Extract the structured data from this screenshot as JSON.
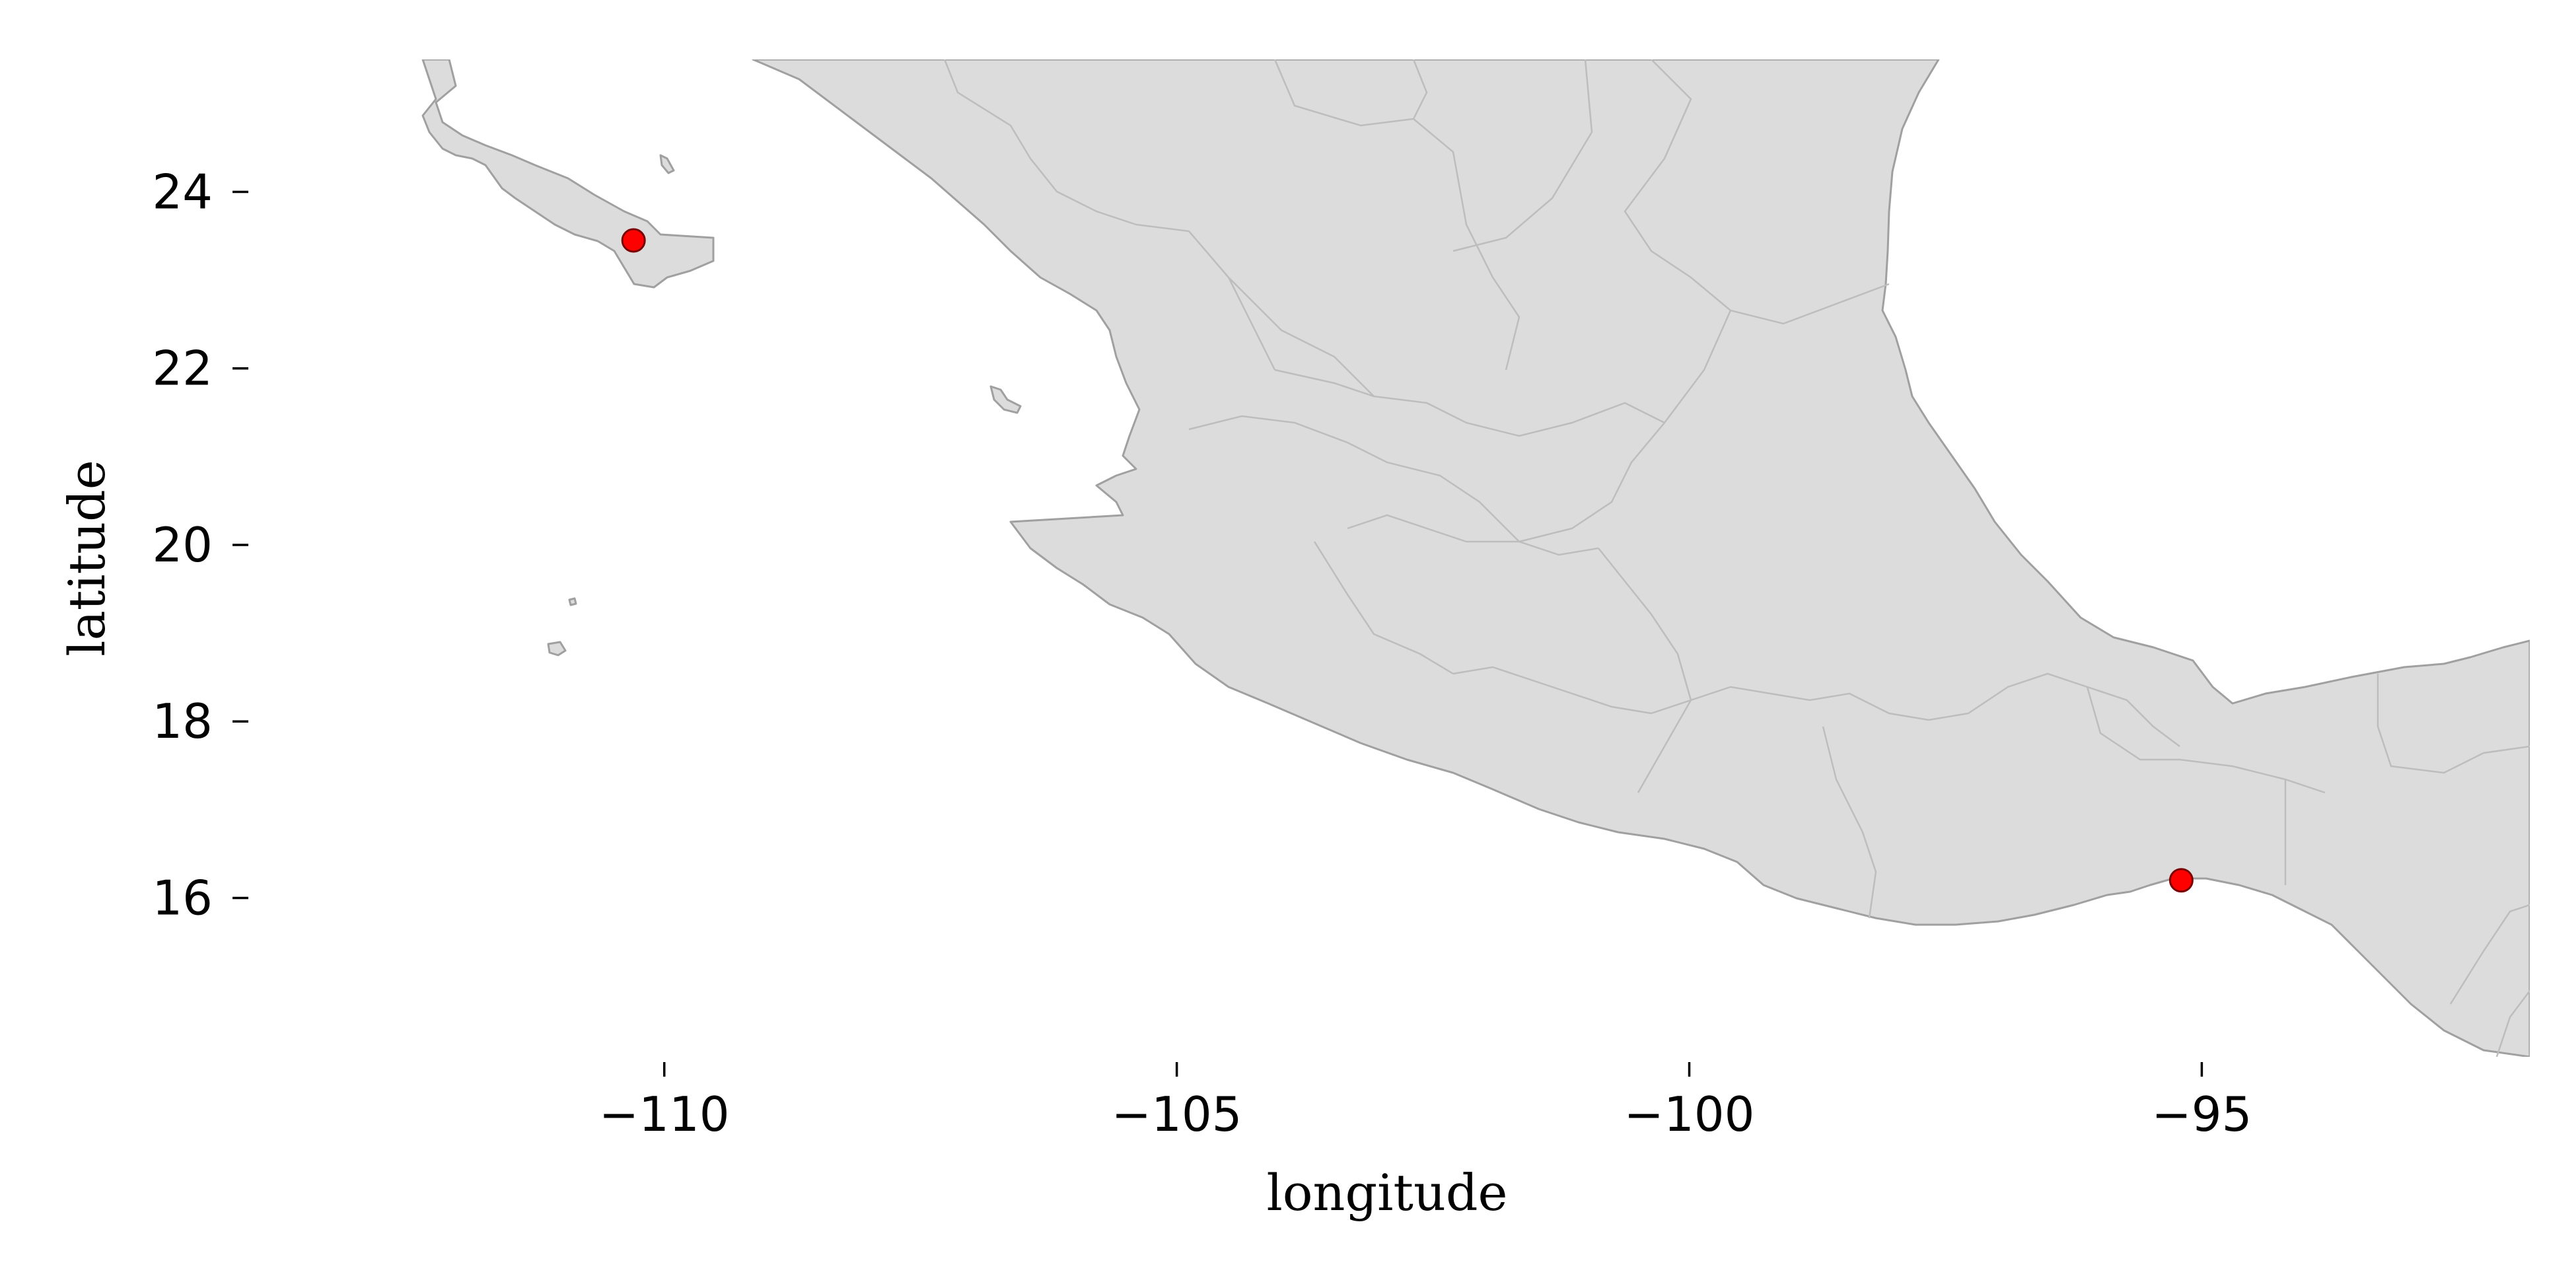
{
  "map": {
    "xlabel": "longitude",
    "ylabel": "latitude",
    "land_color": "#dcdcdc",
    "coast_color": "#a0a0a0",
    "border_color": "#bdbdbd",
    "marker_color": "#ff0000",
    "marker_edge_color": "#7a0000"
  },
  "chart_data": {
    "type": "scatter",
    "title": "",
    "xlabel": "longitude",
    "ylabel": "latitude",
    "xlim": [
      -114.0,
      -91.8
    ],
    "ylim": [
      14.2,
      25.5
    ],
    "grid": false,
    "x_ticks": [
      -110,
      -105,
      -100,
      -95
    ],
    "x_tick_labels": [
      "−110",
      "−105",
      "−100",
      "−95"
    ],
    "y_ticks": [
      16,
      18,
      20,
      22,
      24
    ],
    "y_tick_labels": [
      "16",
      "18",
      "20",
      "22",
      "24"
    ],
    "x": [
      -110.3,
      -95.2
    ],
    "y": [
      23.45,
      16.2
    ]
  }
}
